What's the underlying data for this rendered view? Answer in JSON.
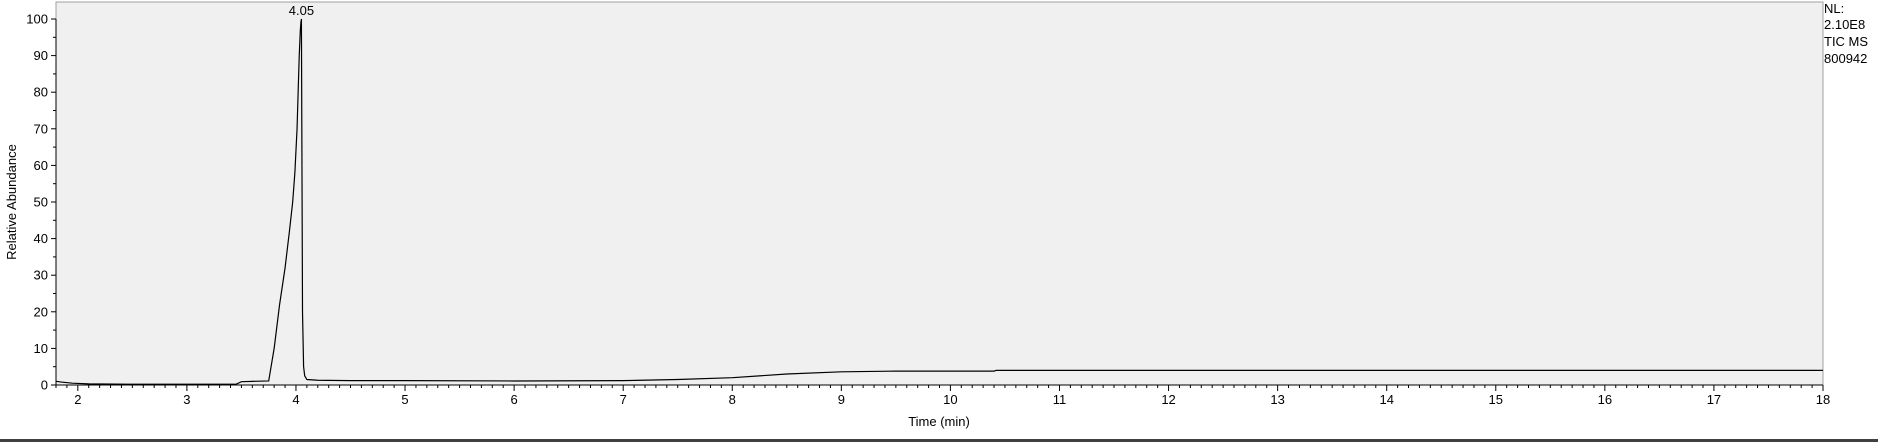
{
  "chart_data": {
    "type": "line",
    "xlabel": "Time (min)",
    "ylabel": "Relative Abundance",
    "xlim": [
      1.8,
      18
    ],
    "ylim": [
      0,
      100
    ],
    "x_ticks": [
      "2",
      "3",
      "4",
      "5",
      "6",
      "7",
      "8",
      "9",
      "10",
      "11",
      "12",
      "13",
      "14",
      "15",
      "16",
      "17",
      "18"
    ],
    "y_ticks": [
      "0",
      "10",
      "20",
      "30",
      "40",
      "50",
      "60",
      "70",
      "80",
      "90",
      "100"
    ],
    "peak_labels": [
      {
        "x": 4.05,
        "y": 100,
        "text": "4.05"
      }
    ],
    "info_lines": [
      "NL:",
      "2.10E8",
      "TIC  MS",
      "800942"
    ],
    "grid": false,
    "legend": "none",
    "series": [
      {
        "x": [
          1.8,
          1.85,
          1.95,
          2.1,
          2.5,
          3.0,
          3.3,
          3.45,
          3.5,
          3.6,
          3.75,
          3.8,
          3.85,
          3.9,
          3.94,
          3.97,
          3.99,
          4.01,
          4.02,
          4.03,
          4.04,
          4.045,
          4.05,
          4.055,
          4.06,
          4.07,
          4.08,
          4.1,
          4.2,
          4.5,
          5.0,
          6.0,
          7.0,
          7.5,
          8.0,
          8.5,
          9.0,
          9.5,
          10.0,
          10.4,
          10.42,
          11.0,
          12.0,
          14.0,
          16.0,
          18.0
        ],
        "y": [
          1.0,
          0.8,
          0.5,
          0.3,
          0.2,
          0.2,
          0.2,
          0.2,
          0.9,
          1.0,
          1.1,
          10.0,
          22.0,
          32.0,
          42.0,
          50.0,
          58.0,
          70.0,
          80.0,
          90.0,
          97.0,
          99.0,
          100.0,
          60.0,
          20.0,
          5.0,
          2.5,
          1.5,
          1.3,
          1.2,
          1.2,
          1.1,
          1.2,
          1.5,
          2.0,
          3.0,
          3.6,
          3.8,
          3.8,
          3.8,
          4.0,
          4.0,
          4.0,
          4.0,
          4.0,
          4.0
        ]
      }
    ]
  }
}
